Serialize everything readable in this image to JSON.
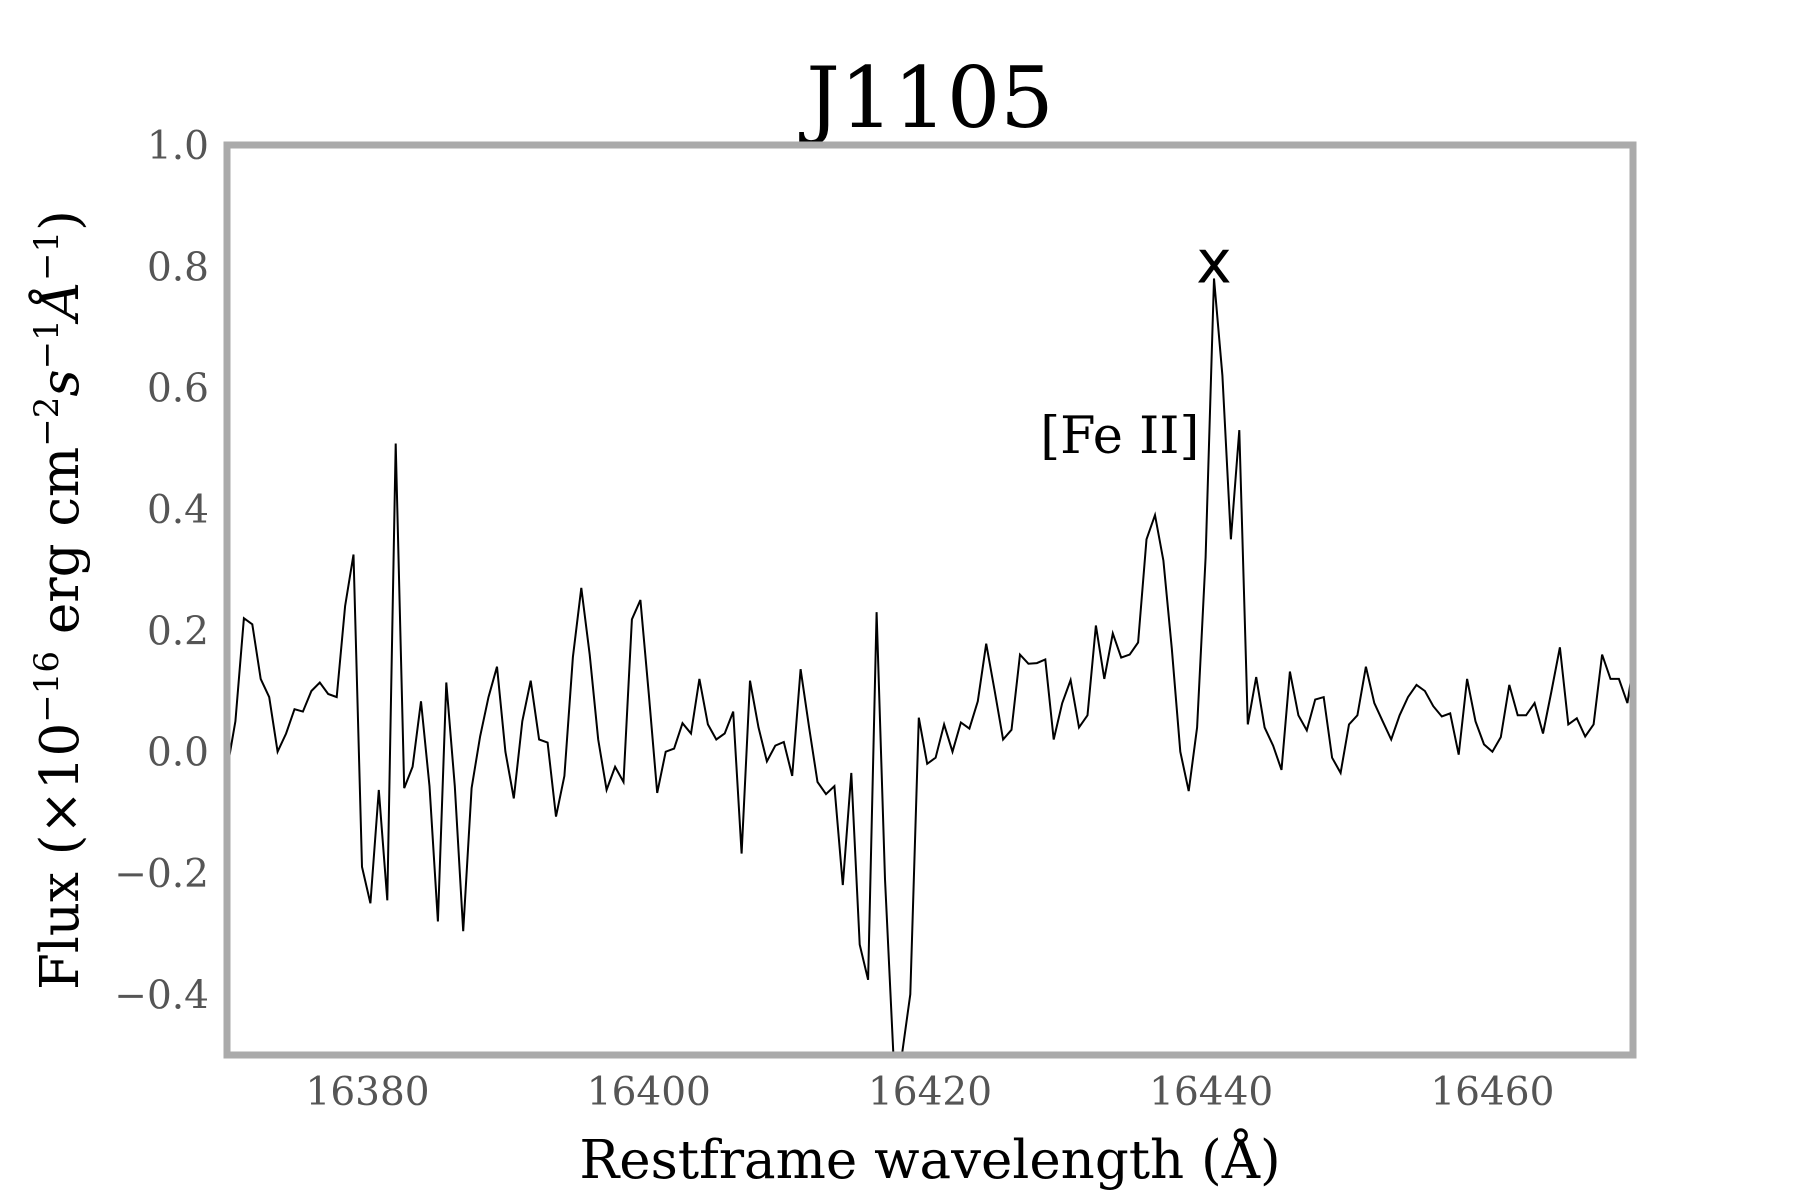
{
  "chart_data": {
    "type": "line",
    "title": "J1105",
    "xlabel": "Restframe wavelength (Å)",
    "ylabel_parts": {
      "flux": "Flux (×10",
      "exp16": "−16",
      "erg": " erg cm",
      "expm2": "−2",
      "s": "s",
      "expm1a": "−1",
      "ang": "Å",
      "expm1b": "−1",
      "close": ")"
    },
    "xlim": [
      16370,
      16470
    ],
    "ylim": [
      -0.5,
      1.0
    ],
    "xticks": [
      16380,
      16400,
      16420,
      16440,
      16460
    ],
    "xtick_labels": [
      "16380",
      "16400",
      "16420",
      "16440",
      "16460"
    ],
    "yticks": [
      -0.4,
      -0.2,
      0.0,
      0.2,
      0.4,
      0.6,
      0.8,
      1.0
    ],
    "ytick_labels": [
      "−0.4",
      "−0.2",
      "0.0",
      "0.2",
      "0.4",
      "0.6",
      "0.8",
      "1.0"
    ],
    "grid": false,
    "line_color": "#000000",
    "frame_color": "#aaaaaa",
    "annotations": [
      {
        "text": "[Fe II]",
        "x": 16433.5,
        "y": 0.52
      },
      {
        "text": "x",
        "x": 16440.2,
        "y": 0.8
      }
    ],
    "series": [
      {
        "x": [
          16370.0,
          16370.6,
          16371.2,
          16371.8,
          16372.4,
          16373.0,
          16373.6,
          16374.2,
          16374.8,
          16375.4,
          16376.0,
          16376.6,
          16377.2,
          16377.8,
          16378.4,
          16379.0,
          16379.6,
          16380.2,
          16380.8,
          16381.4,
          16382.0,
          16382.6,
          16383.2,
          16383.8,
          16384.4,
          16385.0,
          16385.6,
          16386.2,
          16386.8,
          16387.4,
          16388.0,
          16388.6,
          16389.2,
          16389.8,
          16390.4,
          16391.0,
          16391.6,
          16392.2,
          16392.8,
          16393.4,
          16394.0,
          16394.6,
          16395.2,
          16395.8,
          16396.4,
          16397.0,
          16397.6,
          16398.2,
          16398.8,
          16399.4,
          16400.0,
          16400.6,
          16401.2,
          16401.8,
          16402.4,
          16403.0,
          16403.6,
          16404.2,
          16404.8,
          16405.4,
          16406.0,
          16406.6,
          16407.2,
          16407.8,
          16408.4,
          16409.0,
          16409.6,
          16410.2,
          16410.8,
          16411.4,
          16412.0,
          16412.6,
          16413.2,
          16413.8,
          16414.4,
          16415.0,
          16415.6,
          16416.2,
          16416.8,
          16417.4,
          16418.0,
          16418.6,
          16419.2,
          16419.8,
          16420.4,
          16421.0,
          16421.6,
          16422.2,
          16422.8,
          16423.4,
          16424.0,
          16424.6,
          16425.2,
          16425.8,
          16426.4,
          16427.0,
          16427.6,
          16428.2,
          16428.8,
          16429.4,
          16430.0,
          16430.6,
          16431.2,
          16431.8,
          16432.4,
          16433.0,
          16433.6,
          16434.2,
          16434.8,
          16435.4,
          16436.0,
          16436.6,
          16437.2,
          16437.8,
          16438.4,
          16439.0,
          16439.6,
          16440.2,
          16440.8,
          16441.4,
          16442.0,
          16442.6,
          16443.2,
          16443.8,
          16444.4,
          16445.0,
          16445.6,
          16446.2,
          16446.8,
          16447.4,
          16448.0,
          16448.6,
          16449.2,
          16449.8,
          16450.4,
          16451.0,
          16451.6,
          16452.2,
          16452.8,
          16453.4,
          16454.0,
          16454.6,
          16455.2,
          16455.8,
          16456.4,
          16457.0,
          16457.6,
          16458.2,
          16458.8,
          16459.4,
          16460.0,
          16460.6,
          16461.2,
          16461.8,
          16462.4,
          16463.0,
          16463.6,
          16464.2,
          16464.8,
          16465.4,
          16466.0,
          16466.6,
          16467.2,
          16467.8,
          16468.4,
          16469.0,
          16469.6,
          16470.0
        ],
        "y": [
          -0.03,
          0.05,
          0.22,
          0.21,
          0.12,
          0.09,
          0.0,
          0.03,
          0.07,
          0.066,
          0.1,
          0.114,
          0.095,
          0.09,
          0.24,
          0.325,
          -0.19,
          -0.25,
          -0.063,
          -0.245,
          0.508,
          -0.06,
          -0.025,
          0.083,
          -0.057,
          -0.28,
          0.114,
          -0.057,
          -0.296,
          -0.06,
          0.025,
          0.09,
          0.14,
          0.0,
          -0.077,
          0.05,
          0.117,
          0.02,
          0.015,
          -0.107,
          -0.04,
          0.156,
          0.27,
          0.16,
          0.02,
          -0.063,
          -0.025,
          -0.05,
          0.218,
          0.25,
          0.095,
          -0.068,
          0.0,
          0.005,
          0.047,
          0.03,
          0.12,
          0.045,
          0.02,
          0.03,
          0.066,
          -0.168,
          0.117,
          0.04,
          -0.016,
          0.01,
          0.016,
          -0.04,
          0.136,
          0.04,
          -0.05,
          -0.07,
          -0.057,
          -0.22,
          -0.035,
          -0.318,
          -0.376,
          0.23,
          -0.21,
          -0.5,
          -0.5,
          -0.4,
          0.056,
          -0.02,
          -0.01,
          0.045,
          0.0,
          0.048,
          0.038,
          0.083,
          0.178,
          0.1,
          0.02,
          0.036,
          0.16,
          0.145,
          0.146,
          0.152,
          0.02,
          0.08,
          0.118,
          0.04,
          0.06,
          0.208,
          0.12,
          0.195,
          0.155,
          0.16,
          0.18,
          0.35,
          0.39,
          0.315,
          0.17,
          0.0,
          -0.065,
          0.04,
          0.32,
          0.78,
          0.62,
          0.35,
          0.53,
          0.045,
          0.123,
          0.04,
          0.01,
          -0.03,
          0.132,
          0.06,
          0.035,
          0.086,
          0.09,
          -0.01,
          -0.035,
          0.045,
          0.06,
          0.14,
          0.08,
          0.05,
          0.02,
          0.06,
          0.09,
          0.11,
          0.1,
          0.075,
          0.058,
          0.063,
          -0.005,
          0.12,
          0.05,
          0.012,
          0.0,
          0.024,
          0.11,
          0.06,
          0.06,
          0.08,
          0.03,
          0.1,
          0.172,
          0.045,
          0.055,
          0.025,
          0.045,
          0.16,
          0.12,
          0.12,
          0.08,
          0.14
        ]
      }
    ]
  }
}
